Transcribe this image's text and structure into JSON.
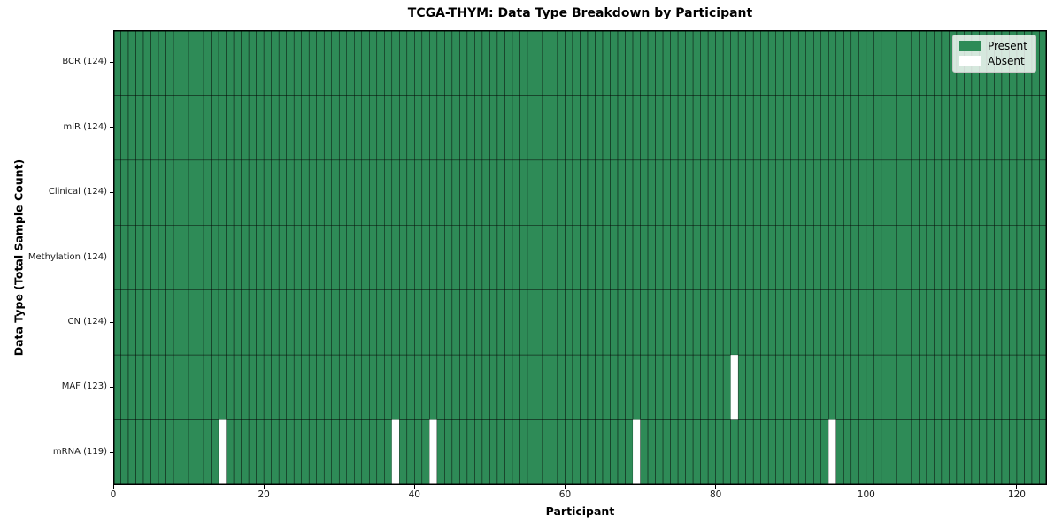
{
  "title": "TCGA-THYM: Data Type Breakdown by Participant",
  "colors": {
    "present": "#2e8b57",
    "absent": "#ffffff",
    "bar_edge": "#000000",
    "spine": "#000000"
  },
  "chart_data": {
    "type": "heatmap",
    "title": "TCGA-THYM: Data Type Breakdown by Participant",
    "xlabel": "Participant",
    "ylabel": "Data Type (Total Sample Count)",
    "xlim": [
      0,
      124
    ],
    "n_participants": 124,
    "x_ticks": [
      "0",
      "20",
      "40",
      "60",
      "80",
      "100",
      "120"
    ],
    "x_tick_values": [
      0,
      20,
      40,
      60,
      80,
      100,
      120
    ],
    "grid": false,
    "rows": [
      {
        "label": "BCR (124)",
        "total": 124,
        "absent_participants": []
      },
      {
        "label": "miR (124)",
        "total": 124,
        "absent_participants": []
      },
      {
        "label": "Clinical (124)",
        "total": 124,
        "absent_participants": []
      },
      {
        "label": "Methylation (124)",
        "total": 124,
        "absent_participants": []
      },
      {
        "label": "CN (124)",
        "total": 124,
        "absent_participants": []
      },
      {
        "label": "MAF (123)",
        "total": 123,
        "absent_participants": [
          82
        ]
      },
      {
        "label": "mRNA (119)",
        "total": 119,
        "absent_participants": [
          14,
          37,
          42,
          69,
          95
        ]
      }
    ],
    "legend_position": "upper right",
    "legend": [
      {
        "label": "Present",
        "color": "#2e8b57"
      },
      {
        "label": "Absent",
        "color": "#ffffff"
      }
    ]
  }
}
